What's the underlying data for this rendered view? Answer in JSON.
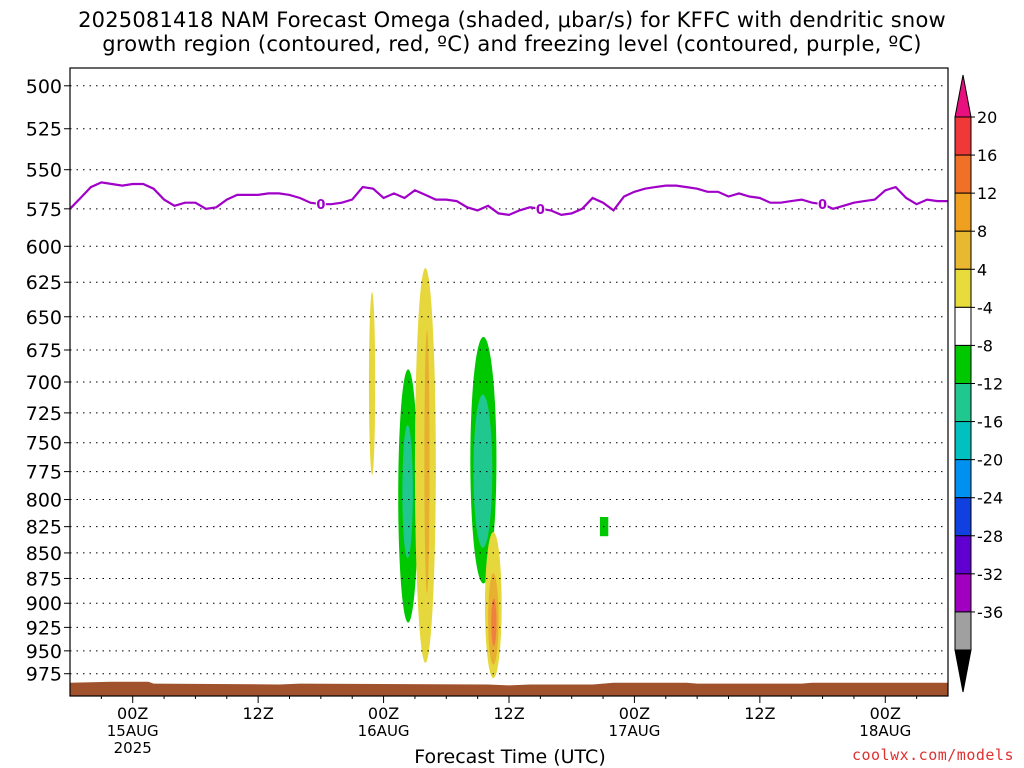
{
  "title": {
    "line1": "2025081418 NAM Forecast Omega (shaded, μbar/s) for KFFC with dendritic snow",
    "line2": "growth region (contoured, red, ºC) and freezing level (contoured, purple, ºC)"
  },
  "credit": "coolwx.com/models",
  "chart_data": {
    "type": "time-height contour",
    "xlabel": "Forecast Time (UTC)",
    "x_range_hours": [
      0,
      84
    ],
    "x_ticks": [
      {
        "hour": 6,
        "label": "00Z",
        "date": "15AUG",
        "year": "2025"
      },
      {
        "hour": 18,
        "label": "12Z",
        "date": "",
        "year": ""
      },
      {
        "hour": 30,
        "label": "00Z",
        "date": "16AUG",
        "year": ""
      },
      {
        "hour": 42,
        "label": "12Z",
        "date": "",
        "year": ""
      },
      {
        "hour": 54,
        "label": "00Z",
        "date": "17AUG",
        "year": ""
      },
      {
        "hour": 66,
        "label": "12Z",
        "date": "",
        "year": ""
      },
      {
        "hour": 78,
        "label": "00Z",
        "date": "18AUG",
        "year": ""
      }
    ],
    "y_axis": {
      "units": "hPa",
      "range": [
        490,
        1000
      ],
      "ticks": [
        500,
        525,
        550,
        575,
        600,
        625,
        650,
        675,
        700,
        725,
        750,
        775,
        800,
        825,
        850,
        875,
        900,
        925,
        950,
        975
      ],
      "grid": "dotted"
    },
    "freezing_level": {
      "color": "#a000c8",
      "label": "0",
      "label_hours": [
        24,
        45,
        72
      ],
      "points": [
        [
          0,
          575
        ],
        [
          1,
          568
        ],
        [
          2,
          561
        ],
        [
          3,
          558
        ],
        [
          4,
          559
        ],
        [
          5,
          560
        ],
        [
          6,
          559
        ],
        [
          7,
          559
        ],
        [
          8,
          562
        ],
        [
          9,
          569
        ],
        [
          10,
          573
        ],
        [
          11,
          571
        ],
        [
          12,
          571
        ],
        [
          13,
          575
        ],
        [
          14,
          574
        ],
        [
          15,
          569
        ],
        [
          16,
          566
        ],
        [
          17,
          566
        ],
        [
          18,
          566
        ],
        [
          19,
          565
        ],
        [
          20,
          565
        ],
        [
          21,
          566
        ],
        [
          22,
          568
        ],
        [
          23,
          571
        ],
        [
          24,
          572
        ],
        [
          25,
          572
        ],
        [
          26,
          571
        ],
        [
          27,
          569
        ],
        [
          28,
          561
        ],
        [
          29,
          562
        ],
        [
          30,
          568
        ],
        [
          31,
          565
        ],
        [
          32,
          568
        ],
        [
          33,
          563
        ],
        [
          34,
          566
        ],
        [
          35,
          569
        ],
        [
          36,
          569
        ],
        [
          37,
          570
        ],
        [
          38,
          574
        ],
        [
          39,
          576
        ],
        [
          40,
          573
        ],
        [
          41,
          578
        ],
        [
          42,
          579
        ],
        [
          43,
          576
        ],
        [
          44,
          574
        ],
        [
          45,
          575
        ],
        [
          46,
          576
        ],
        [
          47,
          579
        ],
        [
          48,
          578
        ],
        [
          49,
          575
        ],
        [
          50,
          568
        ],
        [
          51,
          571
        ],
        [
          52,
          576
        ],
        [
          53,
          567
        ],
        [
          54,
          564
        ],
        [
          55,
          562
        ],
        [
          56,
          561
        ],
        [
          57,
          560
        ],
        [
          58,
          560
        ],
        [
          59,
          561
        ],
        [
          60,
          562
        ],
        [
          61,
          564
        ],
        [
          62,
          564
        ],
        [
          63,
          567
        ],
        [
          64,
          565
        ],
        [
          65,
          567
        ],
        [
          66,
          568
        ],
        [
          67,
          571
        ],
        [
          68,
          571
        ],
        [
          69,
          570
        ],
        [
          70,
          569
        ],
        [
          71,
          571
        ],
        [
          72,
          572
        ],
        [
          73,
          575
        ],
        [
          74,
          573
        ],
        [
          75,
          571
        ],
        [
          76,
          570
        ],
        [
          77,
          569
        ],
        [
          78,
          563
        ],
        [
          79,
          561
        ],
        [
          80,
          568
        ],
        [
          81,
          572
        ],
        [
          82,
          569
        ],
        [
          83,
          570
        ],
        [
          84,
          570
        ]
      ]
    },
    "omega_regions": [
      {
        "sign": "positive",
        "color": "#e6d83c",
        "hour_range": [
          28.6,
          29.2
        ],
        "p_range": [
          632,
          778
        ]
      },
      {
        "sign": "negative",
        "color": "#00c800",
        "hour_range": [
          31.4,
          33.3
        ],
        "p_range": [
          690,
          920
        ]
      },
      {
        "sign": "negative",
        "color": "#20c890",
        "hour_range": [
          31.8,
          32.8
        ],
        "p_range": [
          735,
          855
        ]
      },
      {
        "sign": "positive",
        "color": "#e6d83c",
        "hour_range": [
          33.0,
          35.0
        ],
        "p_range": [
          615,
          963
        ]
      },
      {
        "sign": "positive",
        "color": "#e8b030",
        "hour_range": [
          33.9,
          34.4
        ],
        "p_range": [
          660,
          890
        ]
      },
      {
        "sign": "negative",
        "color": "#00c800",
        "hour_range": [
          38.3,
          40.8
        ],
        "p_range": [
          665,
          880
        ]
      },
      {
        "sign": "negative",
        "color": "#20c890",
        "hour_range": [
          38.6,
          40.4
        ],
        "p_range": [
          710,
          845
        ]
      },
      {
        "sign": "positive",
        "color": "#e6d83c",
        "hour_range": [
          39.7,
          41.3
        ],
        "p_range": [
          830,
          980
        ]
      },
      {
        "sign": "positive",
        "color": "#e8b030",
        "hour_range": [
          40.0,
          41.0
        ],
        "p_range": [
          870,
          965
        ]
      },
      {
        "sign": "positive",
        "color": "#f08040",
        "hour_range": [
          40.3,
          40.8
        ],
        "p_range": [
          895,
          945
        ]
      },
      {
        "sign": "negative",
        "color": "#00c800",
        "hour_range": [
          50.7,
          51.5
        ],
        "p_range": [
          816,
          834
        ]
      }
    ],
    "terrain": {
      "color": "#a0522d",
      "points": [
        [
          0,
          985
        ],
        [
          4,
          984
        ],
        [
          7.5,
          984
        ],
        [
          8,
          986
        ],
        [
          20,
          987
        ],
        [
          22,
          986
        ],
        [
          40,
          987
        ],
        [
          42,
          988
        ],
        [
          44,
          987
        ],
        [
          50,
          987
        ],
        [
          52,
          985
        ],
        [
          59,
          985
        ],
        [
          60,
          986
        ],
        [
          70,
          986
        ],
        [
          71,
          985
        ],
        [
          84,
          985
        ]
      ]
    },
    "colorbar": {
      "labels": [
        "20",
        "16",
        "12",
        "8",
        "4",
        "-4",
        "-8",
        "-12",
        "-16",
        "-20",
        "-24",
        "-28",
        "-32",
        "-36"
      ],
      "top_cap_color": "#e8107e",
      "bottom_cap_color": "#000000",
      "bins": [
        {
          "color": "#f03838"
        },
        {
          "color": "#f07028"
        },
        {
          "color": "#f0a020"
        },
        {
          "color": "#e8b830"
        },
        {
          "color": "#e8dc3c"
        },
        {
          "color": "#ffffff"
        },
        {
          "color": "#00c800"
        },
        {
          "color": "#20c890"
        },
        {
          "color": "#00c0c0"
        },
        {
          "color": "#0090f0"
        },
        {
          "color": "#1040e0"
        },
        {
          "color": "#6000d0"
        },
        {
          "color": "#a000c0"
        },
        {
          "color": "#a0a0a0"
        }
      ]
    }
  }
}
